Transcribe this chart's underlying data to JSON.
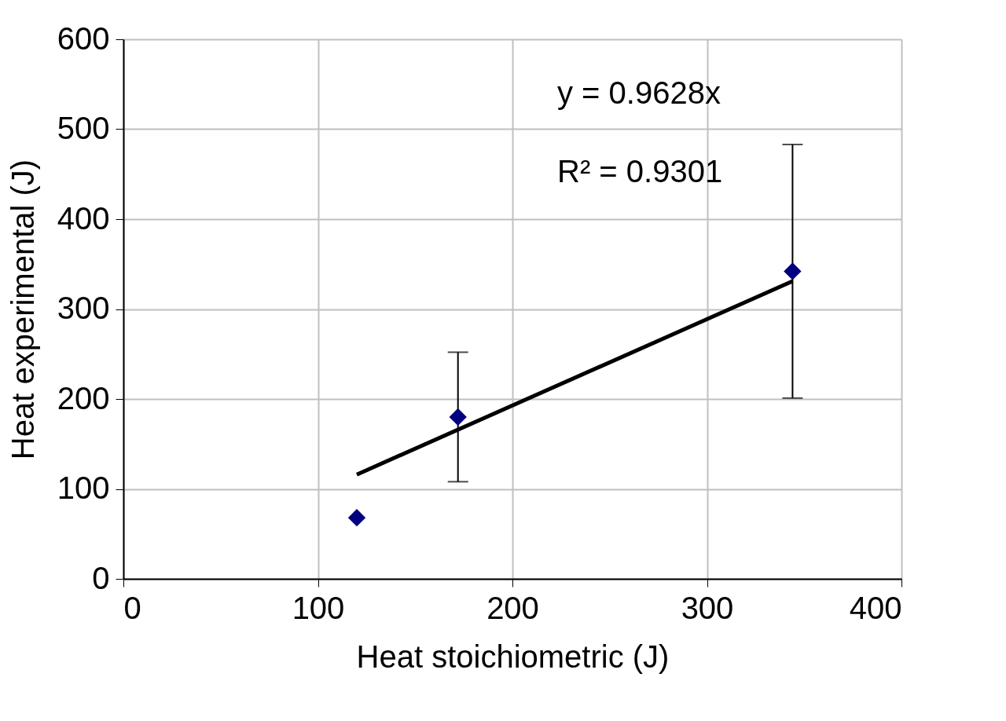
{
  "chart_data": {
    "type": "scatter",
    "xlabel": "Heat stoichiometric (J)",
    "ylabel": "Heat experimental (J)",
    "series": [
      {
        "color": "#000080",
        "x": [
          120,
          172,
          344
        ],
        "values": [
          68,
          180,
          342
        ],
        "errors": [
          null,
          72,
          141
        ]
      },
      {
        "type": "line",
        "marker": "none",
        "color": "#000000",
        "x": [
          120,
          344
        ],
        "values": [
          116,
          331
        ]
      }
    ],
    "annotations": [
      "y = 0.9628x",
      "R² = 0.9301"
    ],
    "xlim": [
      0,
      400
    ],
    "xticks": [
      0,
      100,
      200,
      300,
      400
    ],
    "ylim": [
      0,
      600
    ],
    "yticks": [
      0,
      100,
      200,
      300,
      400,
      500,
      600
    ],
    "grid": true,
    "marker": "diamond"
  }
}
